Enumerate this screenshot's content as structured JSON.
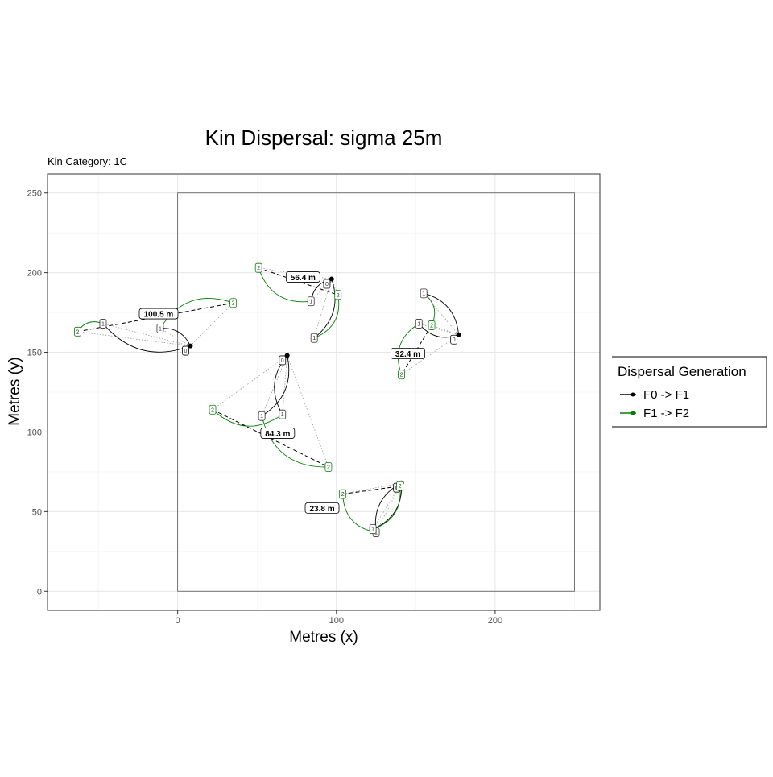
{
  "chart_data": {
    "type": "scatter",
    "title": "Kin Dispersal: sigma 25m",
    "subtitle": "Kin Category: 1C",
    "xlabel": "Metres (x)",
    "ylabel": "Metres (y)",
    "xlim": [
      -82,
      266
    ],
    "ylim": [
      -12,
      262
    ],
    "x_ticks": [
      0,
      100,
      200
    ],
    "y_ticks": [
      0,
      50,
      100,
      150,
      200,
      250
    ],
    "grid": true,
    "boundary_square": [
      0,
      0,
      250,
      250
    ],
    "legend": {
      "title": "Dispersal Generation",
      "position": "right",
      "entries": [
        {
          "label": "F0 -> F1",
          "color": "#000000"
        },
        {
          "label": "F1 -> F2",
          "color": "#008000"
        }
      ]
    },
    "colors": {
      "f0_f1": "#000000",
      "f1_f2": "#008000",
      "dotted": "#999999"
    },
    "families": [
      {
        "origin": [
          8,
          154
        ],
        "f1": [
          {
            "pos": [
              -11,
              165
            ],
            "label": "1"
          },
          {
            "pos": [
              -47,
              168
            ],
            "label": "1"
          }
        ],
        "f2": [
          {
            "pos": [
              35,
              181
            ],
            "label": "2"
          },
          {
            "pos": [
              -63,
              163
            ],
            "label": "2"
          }
        ],
        "distance_label": "100.5 m",
        "label_pos": [
          -12,
          174
        ]
      },
      {
        "origin": [
          97,
          196
        ],
        "f1": [
          {
            "pos": [
              84,
              182
            ],
            "label": "1"
          },
          {
            "pos": [
              86,
              159
            ],
            "label": "1"
          }
        ],
        "f2": [
          {
            "pos": [
              51,
              203
            ],
            "label": "2"
          },
          {
            "pos": [
              101,
              186
            ],
            "label": "2"
          }
        ],
        "distance_label": "56.4 m",
        "label_pos": [
          79,
          197
        ]
      },
      {
        "origin": [
          177,
          161
        ],
        "f1": [
          {
            "pos": [
              155,
              187
            ],
            "label": "1"
          },
          {
            "pos": [
              152,
              168
            ],
            "label": "1"
          }
        ],
        "f2": [
          {
            "pos": [
              160,
              167
            ],
            "label": "2"
          },
          {
            "pos": [
              141,
              136
            ],
            "label": "2"
          }
        ],
        "distance_label": "32.4 m",
        "label_pos": [
          145,
          149
        ]
      },
      {
        "origin": [
          69,
          148
        ],
        "f1": [
          {
            "pos": [
              66,
              111
            ],
            "label": "1"
          },
          {
            "pos": [
              53,
              110
            ],
            "label": "1"
          }
        ],
        "f2": [
          {
            "pos": [
              22,
              114
            ],
            "label": "2"
          },
          {
            "pos": [
              95,
              78
            ],
            "label": "2"
          }
        ],
        "distance_label": "84.3 m",
        "label_pos": [
          63,
          99
        ]
      },
      {
        "origin": [
          141,
          68
        ],
        "f1": [
          {
            "pos": [
              125,
              37
            ],
            "label": "1"
          },
          {
            "pos": [
              123,
              39
            ],
            "label": "1"
          }
        ],
        "f2": [
          {
            "pos": [
              104,
              61
            ],
            "label": "2"
          },
          {
            "pos": [
              140,
              66
            ],
            "label": "2"
          }
        ],
        "distance_label": "23.8 m",
        "label_pos": [
          91,
          52
        ]
      }
    ]
  }
}
